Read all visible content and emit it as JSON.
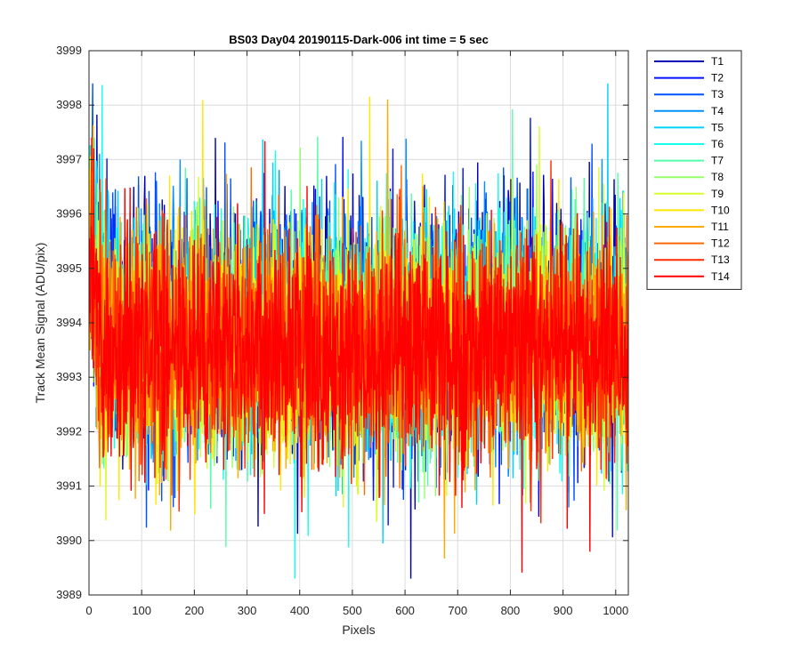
{
  "chart_data": {
    "type": "line",
    "title": "BS03 Day04 20190115-Dark-006 int time = 5 sec",
    "xlabel": "Pixels",
    "ylabel": "Track Mean Signal (ADU/pix)",
    "xlim": [
      0,
      1024
    ],
    "ylim": [
      3989,
      3999
    ],
    "xticks": [
      0,
      100,
      200,
      300,
      400,
      500,
      600,
      700,
      800,
      900,
      1000
    ],
    "yticks": [
      3989,
      3990,
      3991,
      3992,
      3993,
      3994,
      3995,
      3996,
      3997,
      3998,
      3999
    ],
    "grid": true,
    "legend_position": "outside-top-right",
    "colormap": "jet",
    "x_points": 1024,
    "series": [
      {
        "name": "T1",
        "color": "#0000b9",
        "mean": 3993.9,
        "std": 1.15
      },
      {
        "name": "T2",
        "color": "#0011ff",
        "mean": 3993.9,
        "std": 1.12
      },
      {
        "name": "T3",
        "color": "#0051ff",
        "mean": 3993.8,
        "std": 1.1
      },
      {
        "name": "T4",
        "color": "#0091ff",
        "mean": 3993.8,
        "std": 1.08
      },
      {
        "name": "T5",
        "color": "#00d2ff",
        "mean": 3993.8,
        "std": 1.06
      },
      {
        "name": "T6",
        "color": "#14ffeb",
        "mean": 3993.7,
        "std": 1.05
      },
      {
        "name": "T7",
        "color": "#55ffaa",
        "mean": 3993.7,
        "std": 1.04
      },
      {
        "name": "T8",
        "color": "#95ff6a",
        "mean": 3993.7,
        "std": 1.03
      },
      {
        "name": "T9",
        "color": "#d5ff2a",
        "mean": 3993.6,
        "std": 1.03
      },
      {
        "name": "T10",
        "color": "#ffe800",
        "mean": 3993.6,
        "std": 1.02
      },
      {
        "name": "T11",
        "color": "#ffaa00",
        "mean": 3993.6,
        "std": 1.02
      },
      {
        "name": "T12",
        "color": "#ff6a00",
        "mean": 3993.6,
        "std": 1.02
      },
      {
        "name": "T13",
        "color": "#ff2a00",
        "mean": 3993.5,
        "std": 1.02
      },
      {
        "name": "T14",
        "color": "#ff0000",
        "mean": 3993.5,
        "std": 1.0
      }
    ]
  }
}
